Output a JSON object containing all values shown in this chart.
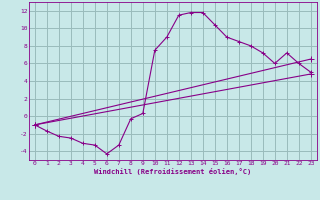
{
  "title": "",
  "xlabel": "Windchill (Refroidissement éolien,°C)",
  "ylabel": "",
  "background_color": "#c8e8e8",
  "line_color": "#880088",
  "grid_color": "#99bbbb",
  "xlim": [
    -0.5,
    23.5
  ],
  "ylim": [
    -5,
    13
  ],
  "xticks": [
    0,
    1,
    2,
    3,
    4,
    5,
    6,
    7,
    8,
    9,
    10,
    11,
    12,
    13,
    14,
    15,
    16,
    17,
    18,
    19,
    20,
    21,
    22,
    23
  ],
  "yticks": [
    -4,
    -2,
    0,
    2,
    4,
    6,
    8,
    10,
    12
  ],
  "line1_x": [
    0,
    1,
    2,
    3,
    4,
    5,
    6,
    7,
    8,
    9,
    10,
    11,
    12,
    13,
    14,
    15,
    16,
    17,
    18,
    19,
    20,
    21,
    22,
    23
  ],
  "line1_y": [
    -1,
    -1.7,
    -2.3,
    -2.5,
    -3.1,
    -3.3,
    -4.3,
    -3.3,
    -0.3,
    0.3,
    7.5,
    9.0,
    11.5,
    11.8,
    11.8,
    10.4,
    9.0,
    8.5,
    8.0,
    7.2,
    6.0,
    7.2,
    6.0,
    5.0
  ],
  "line2_x": [
    0,
    23
  ],
  "line2_y": [
    -1.0,
    4.8
  ],
  "line3_x": [
    0,
    23
  ],
  "line3_y": [
    -1.0,
    6.5
  ],
  "figsize": [
    3.2,
    2.0
  ],
  "dpi": 100
}
